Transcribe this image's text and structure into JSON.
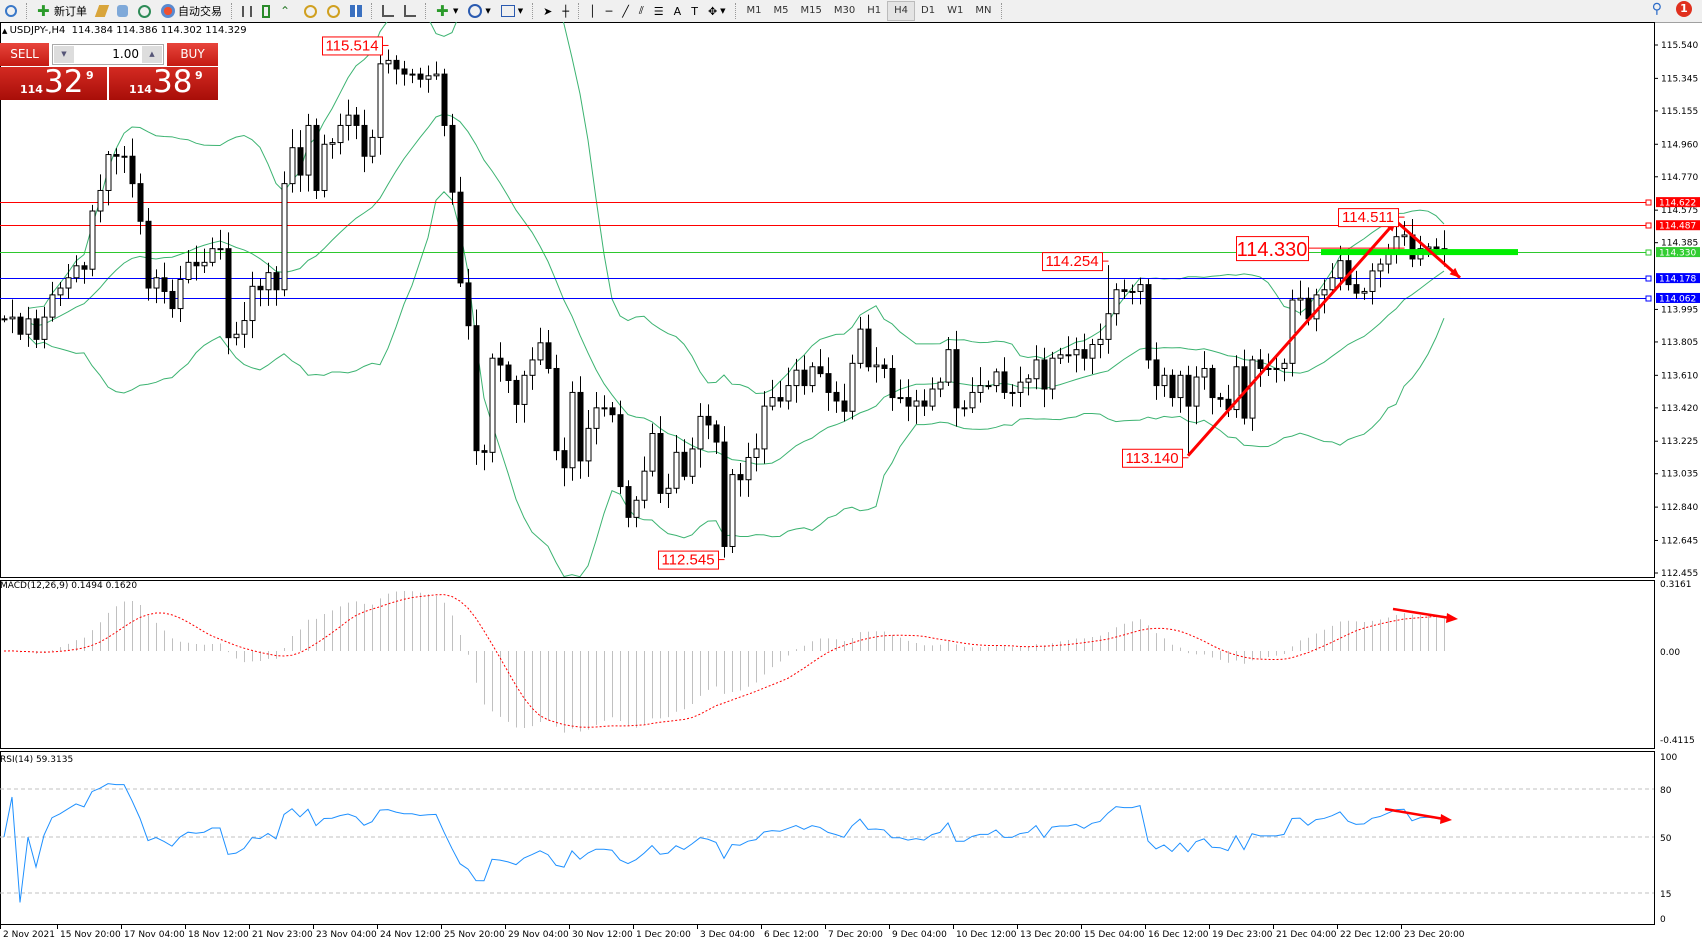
{
  "toolbar": {
    "new_order_label": "新订单",
    "auto_trading_label": "自动交易",
    "timeframes": [
      "M1",
      "M5",
      "M15",
      "M30",
      "H1",
      "H4",
      "D1",
      "W1",
      "MN"
    ],
    "active_timeframe": "H4",
    "notification_count": "1"
  },
  "chart": {
    "header": "USDJPY-,H4  114.384 114.386 114.302 114.329",
    "macd_title": "MACD(12,26,9) 0.1494 0.1620",
    "rsi_title": "RSI(14) 59.3135"
  },
  "trade_panel": {
    "sell_label": "SELL",
    "buy_label": "BUY",
    "lot": "1.00",
    "sell_price": {
      "prefix": "114",
      "main": "32",
      "sup": "9"
    },
    "buy_price": {
      "prefix": "114",
      "main": "38",
      "sup": "9"
    }
  },
  "chart_data": {
    "type": "candlestick",
    "symbol": "USDJPY-",
    "timeframe": "H4",
    "closes": [
      113.94,
      113.95,
      113.85,
      113.94,
      113.82,
      113.95,
      114.08,
      114.12,
      114.18,
      114.25,
      114.23,
      114.57,
      114.69,
      114.9,
      114.89,
      114.89,
      114.73,
      114.51,
      114.12,
      114.18,
      114.1,
      114.0,
      114.17,
      114.27,
      114.25,
      114.27,
      114.35,
      114.35,
      113.83,
      113.85,
      113.93,
      114.13,
      114.11,
      114.21,
      114.11,
      114.73,
      114.94,
      114.78,
      115.07,
      114.69,
      114.96,
      114.97,
      115.07,
      115.13,
      115.07,
      114.89,
      115.0,
      115.43,
      115.45,
      115.4,
      115.37,
      115.37,
      115.34,
      115.36,
      115.37,
      115.07,
      114.68,
      114.15,
      113.9,
      113.17,
      113.16,
      113.71,
      113.67,
      113.58,
      113.44,
      113.61,
      113.7,
      113.8,
      113.65,
      113.17,
      113.07,
      113.51,
      113.11,
      113.3,
      113.42,
      113.42,
      113.38,
      112.96,
      112.78,
      112.88,
      113.05,
      113.27,
      112.92,
      112.95,
      113.16,
      113.02,
      113.18,
      113.37,
      113.32,
      113.22,
      112.61,
      113.03,
      113.0,
      113.13,
      113.18,
      113.43,
      113.48,
      113.46,
      113.55,
      113.64,
      113.55,
      113.66,
      113.62,
      113.51,
      113.46,
      113.4,
      113.68,
      113.88,
      113.66,
      113.67,
      113.65,
      113.48,
      113.48,
      113.43,
      113.46,
      113.43,
      113.53,
      113.57,
      113.76,
      113.42,
      113.42,
      113.51,
      113.55,
      113.55,
      113.63,
      113.51,
      113.51,
      113.57,
      113.59,
      113.7,
      113.53,
      113.71,
      113.73,
      113.73,
      113.76,
      113.71,
      113.79,
      113.82,
      113.97,
      114.11,
      114.1,
      114.1,
      114.14,
      113.7,
      113.55,
      113.61,
      113.48,
      113.61,
      113.43,
      113.6,
      113.65,
      113.48,
      113.47,
      113.41,
      113.66,
      113.36,
      113.7,
      113.65,
      113.65,
      113.65,
      113.68,
      114.05,
      114.06,
      113.94,
      114.08,
      114.11,
      114.18,
      114.28,
      114.14,
      114.09,
      114.1,
      114.22,
      114.26,
      114.34,
      114.42,
      114.43,
      114.29,
      114.35,
      114.36,
      114.35,
      114.33
    ],
    "price_axis": {
      "min": 112.455,
      "max": 115.54,
      "ticks": [
        "115.540",
        "115.345",
        "115.155",
        "114.960",
        "114.770",
        "114.575",
        "114.385",
        "113.995",
        "113.805",
        "113.610",
        "113.420",
        "113.225",
        "113.035",
        "112.840",
        "112.645",
        "112.455"
      ]
    },
    "indicators": [
      "Bollinger Bands",
      "MACD(12,26,9)",
      "RSI(14)"
    ],
    "band_color": "#3cb371",
    "horizontal_lines": [
      {
        "price": "114.622",
        "color": "#ff0000"
      },
      {
        "price": "114.487",
        "color": "#ff0000"
      },
      {
        "price": "114.330",
        "color": "#2ec82e"
      },
      {
        "price": "114.178",
        "color": "#0000ff"
      },
      {
        "price": "114.062",
        "color": "#0000ff"
      }
    ],
    "price_labels": [
      {
        "text": "115.514",
        "bar": 48,
        "kind": "high"
      },
      {
        "text": "112.545",
        "bar": 90,
        "kind": "low"
      },
      {
        "text": "114.254",
        "bar": 138,
        "kind": "high"
      },
      {
        "text": "114.330",
        "bar": 175,
        "kind": "level"
      },
      {
        "text": "114.511",
        "bar": 175,
        "kind": "high"
      },
      {
        "text": "113.140",
        "bar": 148,
        "kind": "low"
      }
    ],
    "trend_arrows": [
      {
        "from": {
          "bar": 148,
          "price": "113.140"
        },
        "to": {
          "bar": 174,
          "price": "114.511"
        },
        "color": "#ff0000"
      },
      {
        "from": {
          "bar": 174,
          "price": "114.511"
        },
        "to": {
          "bar": 182,
          "price": "114.18"
        },
        "color": "#ff0000"
      }
    ],
    "support_zone": {
      "price": "114.330",
      "color": "#00ee00"
    },
    "macd": {
      "fast": 12,
      "slow": 26,
      "signal": 9,
      "axis": [
        "0.3161",
        "0.00",
        "-0.4115"
      ],
      "range": [
        -0.4115,
        0.3161
      ],
      "histogram_color": "#c0c0c0",
      "signal_color": "#ff0000"
    },
    "rsi": {
      "period": 14,
      "axis": [
        "100",
        "80",
        "50",
        "15",
        "0"
      ],
      "levels": [
        80,
        50,
        15
      ],
      "color": "#1e90ff"
    },
    "dates": [
      "2 Nov 2021",
      "15 Nov 20:00",
      "17 Nov 04:00",
      "18 Nov 12:00",
      "21 Nov 23:00",
      "23 Nov 04:00",
      "24 Nov 12:00",
      "25 Nov 20:00",
      "29 Nov 04:00",
      "30 Nov 12:00",
      "1 Dec 20:00",
      "3 Dec 04:00",
      "6 Dec 12:00",
      "7 Dec 20:00",
      "9 Dec 04:00",
      "10 Dec 12:00",
      "13 Dec 20:00",
      "15 Dec 04:00",
      "16 Dec 12:00",
      "19 Dec 23:00",
      "21 Dec 04:00",
      "22 Dec 12:00",
      "23 Dec 20:00"
    ]
  }
}
